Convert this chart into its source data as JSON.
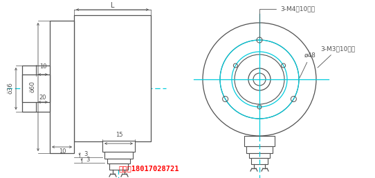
{
  "bg_color": "#ffffff",
  "line_color": "#505050",
  "cyan_color": "#00ccdd",
  "red_color": "#ff0000",
  "phone_text": "手机：18017028721",
  "label_3m4": "3-M4深10均布",
  "label_d48": "ø48",
  "label_3m3": "3-M3深10均布",
  "label_d60": "ö60",
  "label_d36": "ö36",
  "label_L": "L",
  "dim_10a": "10",
  "dim_20": "20",
  "dim_10b": "10",
  "dim_15": "15",
  "dim_3a": "3",
  "dim_3b": "3"
}
